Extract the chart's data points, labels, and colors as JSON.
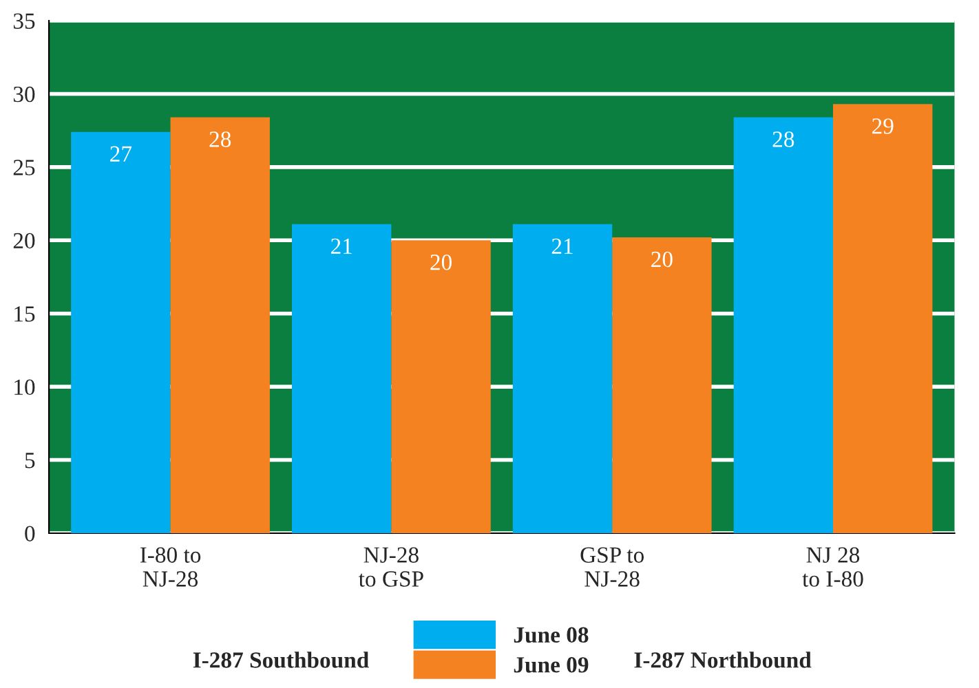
{
  "chart_data": {
    "type": "bar",
    "categories": [
      "I-80 to\nNJ-28",
      "NJ-28\nto GSP",
      "GSP to\nNJ-28",
      "NJ 28\nto I-80"
    ],
    "series": [
      {
        "name": "June 08",
        "color": "#00aeef",
        "values": [
          27.4,
          21.1,
          21.1,
          28.4
        ],
        "value_labels": [
          "27",
          "21",
          "21",
          "28"
        ]
      },
      {
        "name": "June 09",
        "color": "#f58220",
        "values": [
          28.4,
          20.0,
          20.2,
          29.3
        ],
        "value_labels": [
          "28",
          "20",
          "20",
          "29"
        ]
      }
    ],
    "ylim": [
      0,
      35
    ],
    "yticks": [
      0,
      5,
      10,
      15,
      20,
      25,
      30,
      35
    ],
    "grid": "y",
    "legend": "bottom",
    "annotations": [
      "I-287 Southbound",
      "I-287 Northbound"
    ]
  }
}
